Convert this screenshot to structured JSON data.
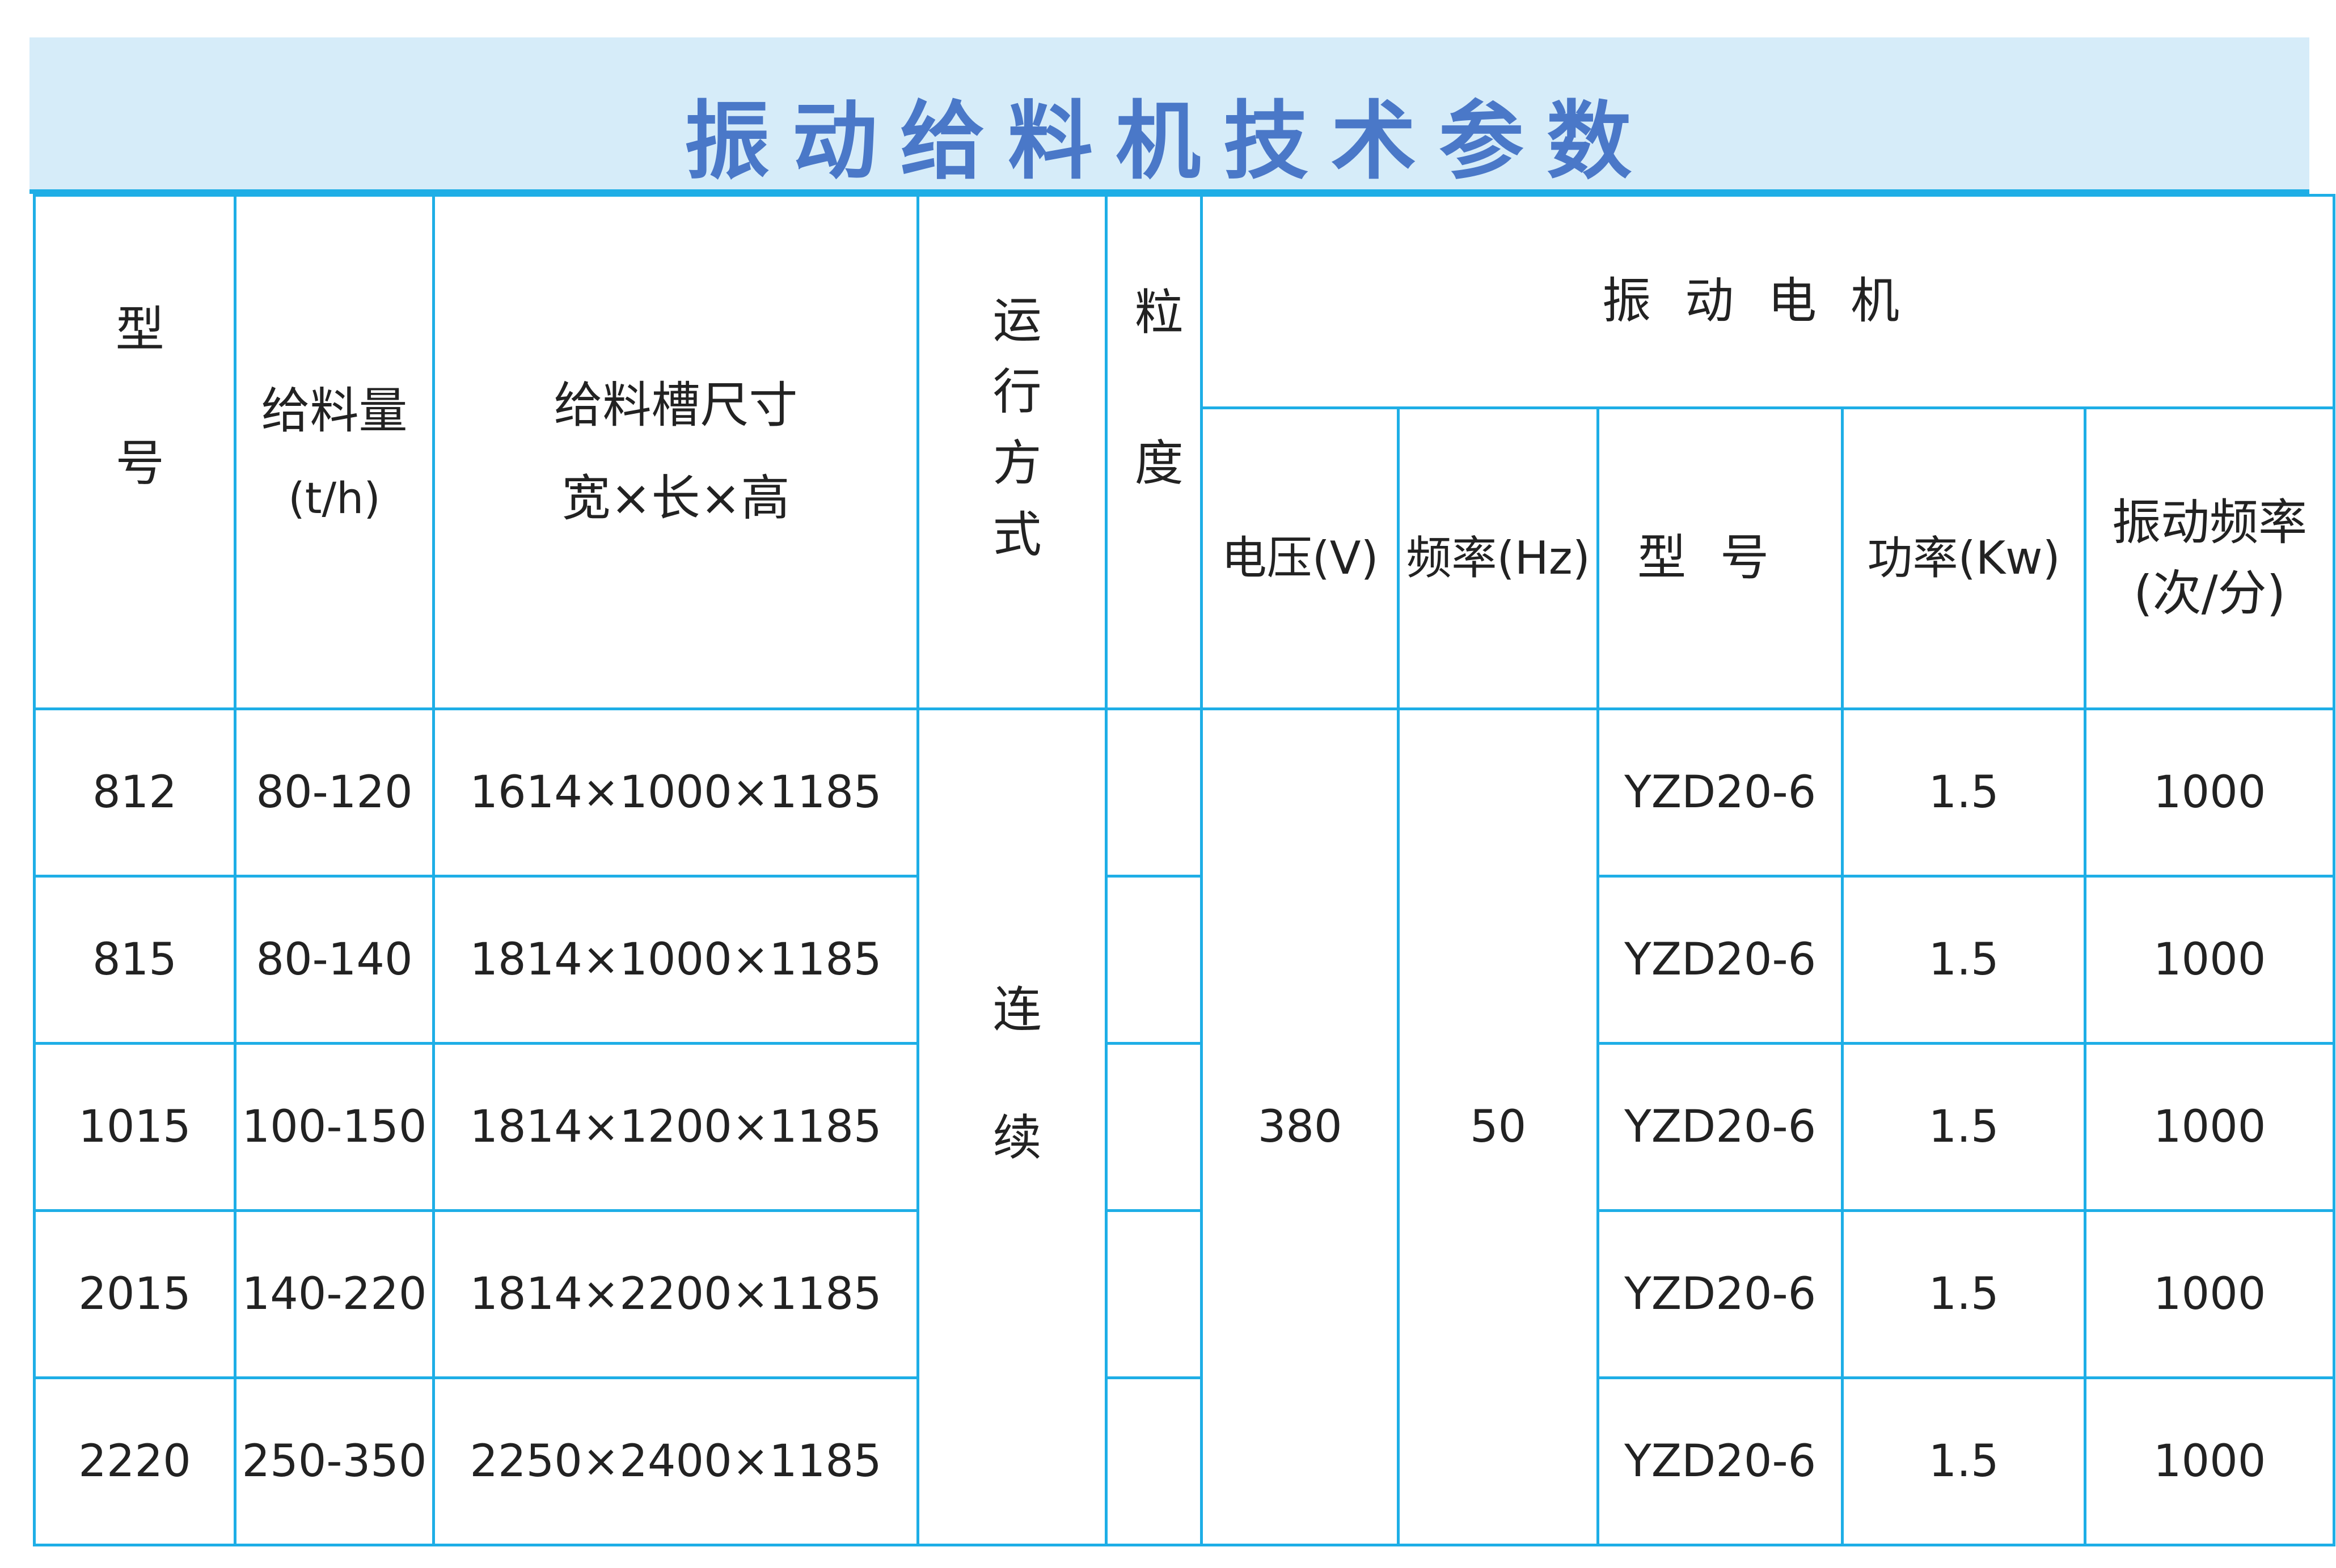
{
  "title": "振动给料机技术参数",
  "colors": {
    "title": "#4a78c8",
    "band": "#d6ecf9",
    "border": "#1eaee6"
  },
  "headers": {
    "model": "型号",
    "feed_rate": "给料量",
    "feed_rate_unit": "(t/h)",
    "trough_size": "给料槽尺寸",
    "trough_size_sub": "宽×长×高",
    "operation": "运行方式",
    "granularity": "粒度",
    "motor": "振动电机",
    "voltage": "电压(V)",
    "frequency": "频率(Hz)",
    "motor_model": "型号",
    "power": "功率(Kw)",
    "vibration_freq": "振动频率",
    "vibration_freq_unit": "(次/分)"
  },
  "operation_value": "连续",
  "voltage_value": "380",
  "frequency_value": "50",
  "rows": [
    {
      "model": "812",
      "feed_rate": "80-120",
      "size": "1614×1000×1185",
      "motor_model": "YZD20-6",
      "power": "1.5",
      "vib": "1000"
    },
    {
      "model": "815",
      "feed_rate": "80-140",
      "size": "1814×1000×1185",
      "motor_model": "YZD20-6",
      "power": "1.5",
      "vib": "1000"
    },
    {
      "model": "1015",
      "feed_rate": "100-150",
      "size": "1814×1200×1185",
      "motor_model": "YZD20-6",
      "power": "1.5",
      "vib": "1000"
    },
    {
      "model": "2015",
      "feed_rate": "140-220",
      "size": "1814×2200×1185",
      "motor_model": "YZD20-6",
      "power": "1.5",
      "vib": "1000"
    },
    {
      "model": "2220",
      "feed_rate": "250-350",
      "size": "2250×2400×1185",
      "motor_model": "YZD20-6",
      "power": "1.5",
      "vib": "1000"
    }
  ]
}
